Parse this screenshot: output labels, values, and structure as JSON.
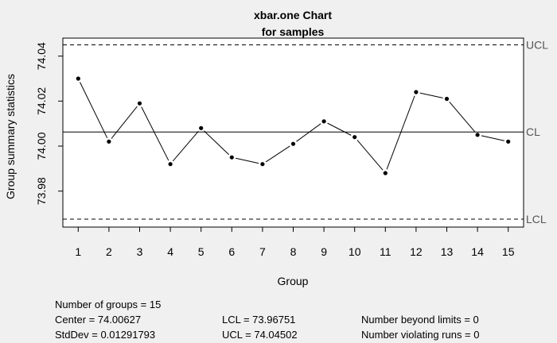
{
  "chart_data": {
    "type": "line",
    "title": "xbar.one Chart",
    "subtitle": "for samples",
    "xlabel": "Group",
    "ylabel": "Group summary statistics",
    "x": [
      1,
      2,
      3,
      4,
      5,
      6,
      7,
      8,
      9,
      10,
      11,
      12,
      13,
      14,
      15
    ],
    "values": [
      74.03,
      74.002,
      74.019,
      73.992,
      74.008,
      73.995,
      73.992,
      74.001,
      74.011,
      74.004,
      73.988,
      74.024,
      74.021,
      74.005,
      74.002
    ],
    "xlim": [
      0.5,
      15.5
    ],
    "ylim": [
      73.964,
      74.048
    ],
    "yticks": [
      "73.98",
      "74.00",
      "74.02",
      "74.04"
    ],
    "xticks": [
      "1",
      "2",
      "3",
      "4",
      "5",
      "6",
      "7",
      "8",
      "9",
      "10",
      "11",
      "12",
      "13",
      "14",
      "15"
    ],
    "lines": {
      "ucl": {
        "label": "UCL",
        "value": 74.04502
      },
      "cl": {
        "label": "CL",
        "value": 74.00627
      },
      "lcl": {
        "label": "LCL",
        "value": 73.96751
      }
    },
    "grid": false
  },
  "stats": {
    "groups": "Number of groups = 15",
    "center": "Center = 74.00627",
    "stddev": "StdDev = 0.01291793",
    "lcl": "LCL = 73.96751",
    "ucl": "UCL = 74.04502",
    "beyond": "Number beyond limits = 0",
    "violating": "Number violating runs = 0"
  }
}
